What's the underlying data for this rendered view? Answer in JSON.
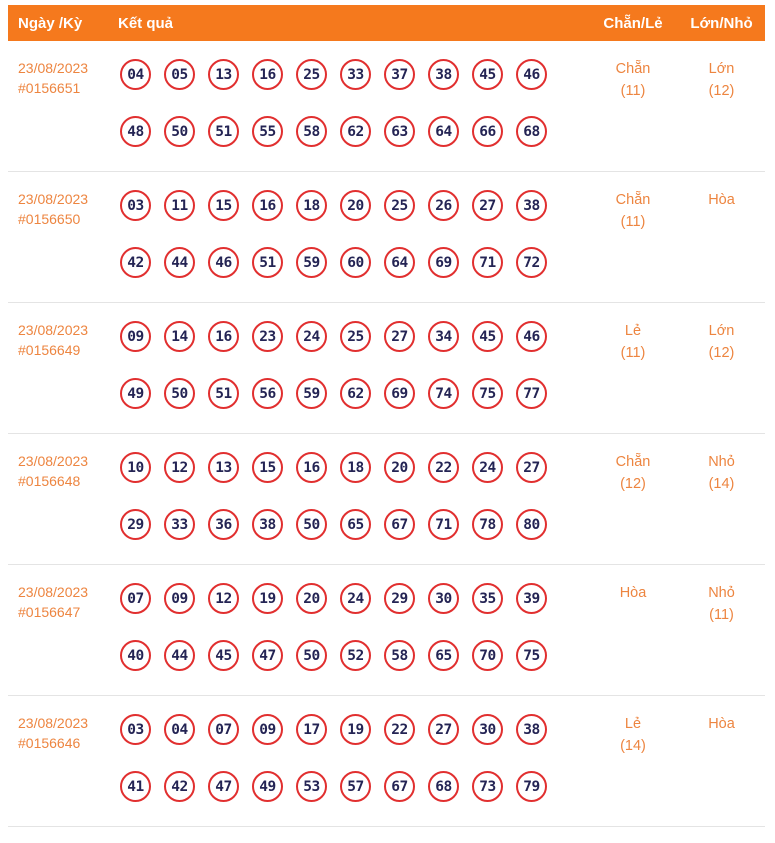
{
  "header": {
    "col_date": "Ngày /Kỳ",
    "col_result": "Kết quả",
    "col_evenodd": "Chẵn/Lẻ",
    "col_bigsmall": "Lớn/Nhỏ"
  },
  "rows": [
    {
      "date": "23/08/2023",
      "draw_id": "#0156651",
      "numbers_line1": [
        "04",
        "05",
        "13",
        "16",
        "25",
        "33",
        "37",
        "38",
        "45",
        "46"
      ],
      "numbers_line2": [
        "48",
        "50",
        "51",
        "55",
        "58",
        "62",
        "63",
        "64",
        "66",
        "68"
      ],
      "evenodd": "Chẵn",
      "evenodd_count": "(11)",
      "bigsmall": "Lớn",
      "bigsmall_count": "(12)"
    },
    {
      "date": "23/08/2023",
      "draw_id": "#0156650",
      "numbers_line1": [
        "03",
        "11",
        "15",
        "16",
        "18",
        "20",
        "25",
        "26",
        "27",
        "38"
      ],
      "numbers_line2": [
        "42",
        "44",
        "46",
        "51",
        "59",
        "60",
        "64",
        "69",
        "71",
        "72"
      ],
      "evenodd": "Chẵn",
      "evenodd_count": "(11)",
      "bigsmall": "Hòa",
      "bigsmall_count": ""
    },
    {
      "date": "23/08/2023",
      "draw_id": "#0156649",
      "numbers_line1": [
        "09",
        "14",
        "16",
        "23",
        "24",
        "25",
        "27",
        "34",
        "45",
        "46"
      ],
      "numbers_line2": [
        "49",
        "50",
        "51",
        "56",
        "59",
        "62",
        "69",
        "74",
        "75",
        "77"
      ],
      "evenodd": "Lẻ",
      "evenodd_count": "(11)",
      "bigsmall": "Lớn",
      "bigsmall_count": "(12)"
    },
    {
      "date": "23/08/2023",
      "draw_id": "#0156648",
      "numbers_line1": [
        "10",
        "12",
        "13",
        "15",
        "16",
        "18",
        "20",
        "22",
        "24",
        "27"
      ],
      "numbers_line2": [
        "29",
        "33",
        "36",
        "38",
        "50",
        "65",
        "67",
        "71",
        "78",
        "80"
      ],
      "evenodd": "Chẵn",
      "evenodd_count": "(12)",
      "bigsmall": "Nhỏ",
      "bigsmall_count": "(14)"
    },
    {
      "date": "23/08/2023",
      "draw_id": "#0156647",
      "numbers_line1": [
        "07",
        "09",
        "12",
        "19",
        "20",
        "24",
        "29",
        "30",
        "35",
        "39"
      ],
      "numbers_line2": [
        "40",
        "44",
        "45",
        "47",
        "50",
        "52",
        "58",
        "65",
        "70",
        "75"
      ],
      "evenodd": "Hòa",
      "evenodd_count": "",
      "bigsmall": "Nhỏ",
      "bigsmall_count": "(11)"
    },
    {
      "date": "23/08/2023",
      "draw_id": "#0156646",
      "numbers_line1": [
        "03",
        "04",
        "07",
        "09",
        "17",
        "19",
        "22",
        "27",
        "30",
        "38"
      ],
      "numbers_line2": [
        "41",
        "42",
        "47",
        "49",
        "53",
        "57",
        "67",
        "68",
        "73",
        "79"
      ],
      "evenodd": "Lẻ",
      "evenodd_count": "(14)",
      "bigsmall": "Hòa",
      "bigsmall_count": ""
    }
  ],
  "colors": {
    "header_bg": "#f5791d",
    "accent_orange": "#ed8540",
    "ball_border": "#e12f2f",
    "ball_text": "#242454",
    "row_border": "#e4e4e4"
  }
}
